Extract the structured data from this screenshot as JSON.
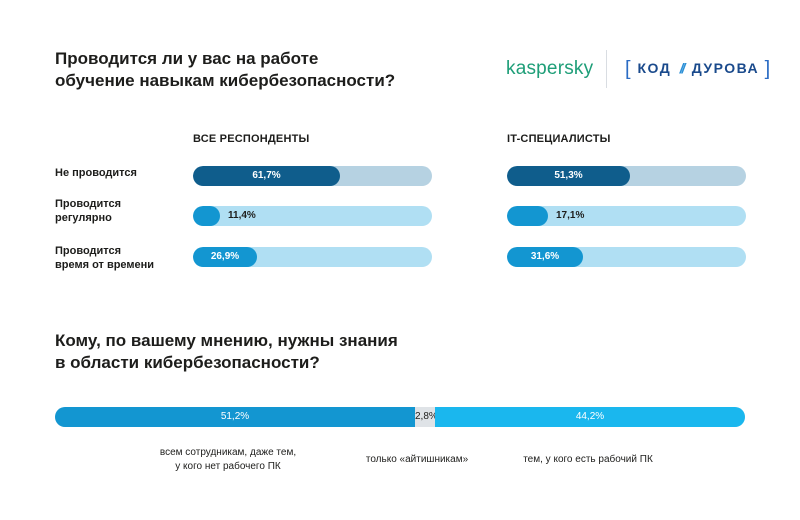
{
  "question1": [
    "Проводится ли у вас на работе",
    "обучение навыкам кибербезопасности?"
  ],
  "question2": [
    "Кому, по вашему мнению, нужны знания",
    "в области кибербезопасности?"
  ],
  "logos": {
    "kaspersky": "kaspersky",
    "kod_left": "[",
    "kod_word1": "КОД",
    "kod_slash": "//",
    "kod_word2": "ДУРОВА",
    "kod_right": "]"
  },
  "colors": {
    "dark": "#0f5d8c",
    "medium": "#1396d1",
    "bright": "#1ab7ee",
    "light": "#b0dff3",
    "track_dark": "#b6d2e2",
    "brand_green": "#1e9e78"
  },
  "chart_data": [
    {
      "type": "bar",
      "orientation": "horizontal",
      "title": "Проводится ли у вас на работе обучение навыкам кибербезопасности?",
      "categories": [
        [
          "Не проводится"
        ],
        [
          "Проводится",
          "регулярно"
        ],
        [
          "Проводится",
          "время от времени"
        ]
      ],
      "series": [
        {
          "name": "ВСЕ РЕСПОНДЕНТЫ",
          "values": [
            61.7,
            11.4,
            26.9
          ],
          "labels": [
            "61,7%",
            "11,4%",
            "26,9%"
          ]
        },
        {
          "name": "IT-СПЕЦИАЛИСТЫ",
          "values": [
            51.3,
            17.1,
            31.6
          ],
          "labels": [
            "51,3%",
            "17,1%",
            "31,6%"
          ]
        }
      ],
      "xlim": [
        0,
        100
      ],
      "unit": "%"
    },
    {
      "type": "bar",
      "orientation": "stacked-horizontal",
      "title": "Кому, по вашему мнению, нужны знания в области кибербезопасности?",
      "segments": [
        {
          "caption": [
            "всем сотрудникам, даже тем,",
            "у кого нет рабочего ПК"
          ],
          "value": 51.2,
          "label": "51,2%"
        },
        {
          "caption": [
            "только «айтишникам»"
          ],
          "value": 2.8,
          "label": "2,8%"
        },
        {
          "caption": [
            "тем, у кого есть рабочий ПК"
          ],
          "value": 44.2,
          "label": "44,2%"
        }
      ],
      "unit": "%"
    }
  ]
}
